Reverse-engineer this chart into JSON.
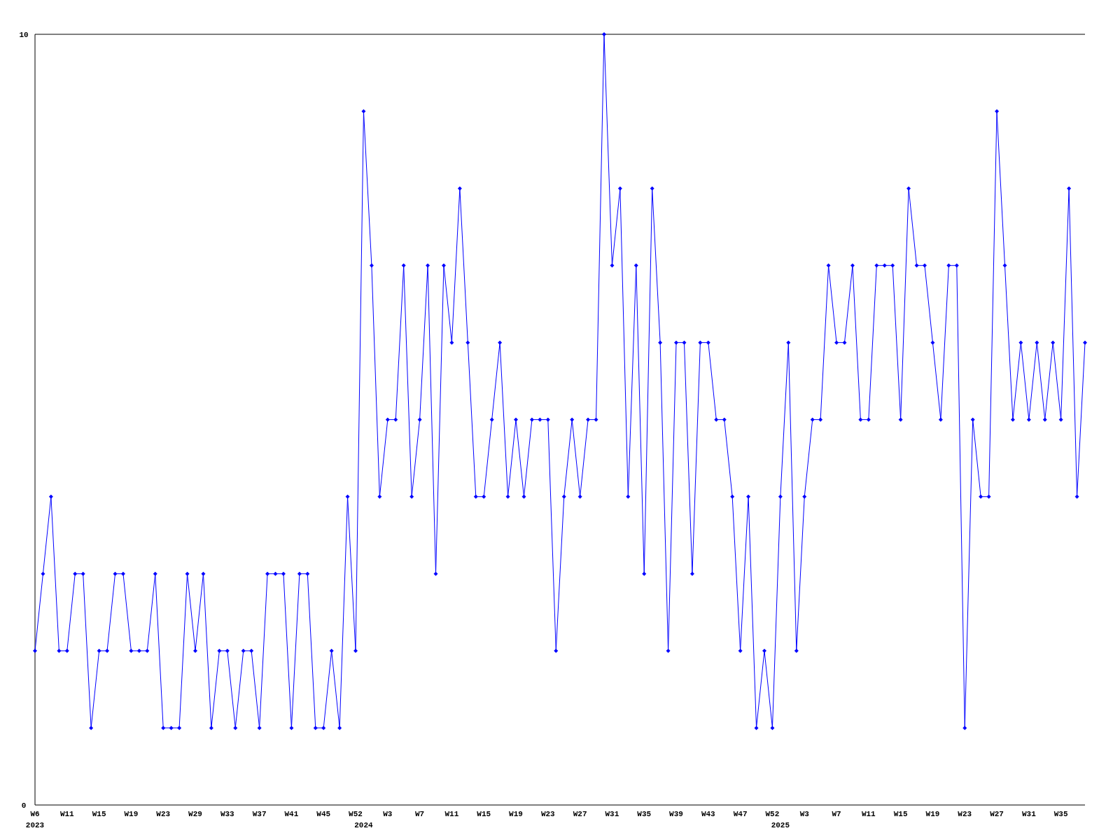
{
  "chart_data": {
    "type": "line",
    "categories": [
      "W6\n2023",
      null,
      null,
      null,
      "W11",
      null,
      null,
      null,
      "W15",
      null,
      null,
      null,
      "W19",
      null,
      null,
      null,
      "W23",
      null,
      null,
      null,
      "W29",
      null,
      null,
      null,
      "W33",
      null,
      null,
      null,
      "W37",
      null,
      null,
      null,
      "W41",
      null,
      null,
      null,
      "W45",
      null,
      null,
      null,
      "W52",
      "\n2024",
      null,
      null,
      "W3",
      null,
      null,
      null,
      "W7",
      null,
      null,
      null,
      "W11",
      null,
      null,
      null,
      "W15",
      null,
      null,
      null,
      "W19",
      null,
      null,
      null,
      "W23",
      null,
      null,
      null,
      "W27",
      null,
      null,
      null,
      "W31",
      null,
      null,
      null,
      "W35",
      null,
      null,
      null,
      "W39",
      null,
      null,
      null,
      "W43",
      null,
      null,
      null,
      "W47",
      null,
      null,
      null,
      "W52",
      "\n2025",
      null,
      null,
      "W3",
      null,
      null,
      null,
      "W7",
      null,
      null,
      null,
      "W11",
      null,
      null,
      null,
      "W15",
      null,
      null,
      null,
      "W19",
      null,
      null,
      null,
      "W23",
      null,
      null,
      null,
      "W27",
      null,
      null,
      null,
      "W31",
      null,
      null,
      null,
      "W35",
      null,
      null,
      null
    ],
    "series": [
      {
        "color": "#0000ff",
        "values": [
          2,
          3,
          4,
          2,
          2,
          3,
          3,
          1,
          2,
          2,
          3,
          3,
          2,
          2,
          2,
          3,
          1,
          1,
          1,
          3,
          2,
          3,
          1,
          2,
          2,
          1,
          2,
          2,
          1,
          3,
          3,
          3,
          1,
          3,
          3,
          1,
          1,
          2,
          1,
          4,
          2,
          9,
          7,
          4,
          5,
          5,
          7,
          4,
          5,
          7,
          3,
          7,
          6,
          8,
          6,
          4,
          4,
          5,
          6,
          4,
          5,
          4,
          5,
          5,
          5,
          2,
          4,
          5,
          4,
          5,
          5,
          10,
          7,
          8,
          4,
          7,
          3,
          8,
          6,
          2,
          6,
          6,
          3,
          6,
          6,
          5,
          5,
          4,
          2,
          4,
          1,
          2,
          1,
          4,
          6,
          2,
          4,
          5,
          5,
          7,
          6,
          6,
          7,
          5,
          5,
          7,
          7,
          7,
          5,
          8,
          7,
          7,
          6,
          5,
          7,
          7,
          1,
          5,
          4,
          4,
          9,
          7,
          5,
          6,
          5,
          6,
          5,
          6,
          5,
          8,
          4,
          6
        ]
      }
    ],
    "ylim": [
      0,
      10
    ],
    "yticks": [
      0,
      10
    ],
    "grid": false,
    "marker": "diamond",
    "line_style": "solid"
  }
}
